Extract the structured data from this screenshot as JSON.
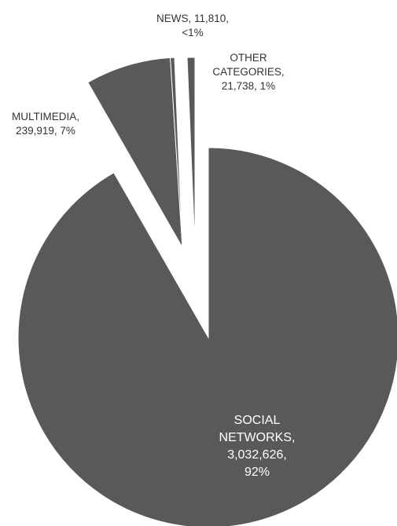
{
  "chart_data": {
    "type": "pie",
    "exploded": true,
    "color": "#595959",
    "label_color_inside": "#ffffff",
    "label_color_outside": "#333333",
    "slices": [
      {
        "category": "SOCIAL NETWORKS",
        "value": 3032626,
        "percent_label": "92%",
        "label_lines": [
          "SOCIAL",
          "NETWORKS,",
          "3,032,626,",
          "92%"
        ]
      },
      {
        "category": "MULTIMEDIA",
        "value": 239919,
        "percent_label": "7%",
        "label_lines": [
          "MULTIMEDIA,",
          "239,919, 7%"
        ]
      },
      {
        "category": "NEWS",
        "value": 11810,
        "percent_label": "<1%",
        "label_lines": [
          "NEWS, 11,810,",
          "<1%"
        ]
      },
      {
        "category": "OTHER CATEGORIES",
        "value": 21738,
        "percent_label": "1%",
        "label_lines": [
          "OTHER",
          "CATEGORIES,",
          "21,738, 1%"
        ]
      }
    ]
  }
}
